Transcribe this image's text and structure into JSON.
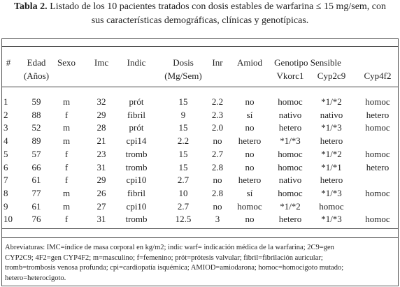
{
  "caption": {
    "label": "Tabla 2.",
    "lines": [
      "Listado de los 10 pacientes tratados con dosis estables de warfarina ≤ 15 mg/sem, con",
      "sus características demográficas, clínicas y genotípicas."
    ]
  },
  "table": {
    "headers": [
      [
        "#"
      ],
      [
        "Edad",
        "(Años)"
      ],
      [
        "Sexo"
      ],
      [
        "Imc"
      ],
      [
        "Indic"
      ],
      [
        "Dosis",
        "(Mg/Sem)"
      ],
      [
        "Inr"
      ],
      [
        "Amiod"
      ]
    ],
    "group_header": "Genotipo Sensible",
    "subheaders": [
      "Vkorc1",
      "Cyp2c9",
      "Cyp4f2"
    ],
    "rows": [
      [
        "1",
        "59",
        "m",
        "32",
        "prót",
        "15",
        "2.2",
        "no",
        "homoc",
        "*1/*2",
        "homoc"
      ],
      [
        "2",
        "88",
        "f",
        "29",
        "fibril",
        "9",
        "2.3",
        "sí",
        "nativo",
        "nativo",
        "hetero"
      ],
      [
        "3",
        "52",
        "m",
        "28",
        "prót",
        "15",
        "2.0",
        "no",
        "hetero",
        "*1/*3",
        "homoc"
      ],
      [
        "4",
        "89",
        "m",
        "21",
        "cpi14",
        "2.2",
        "no",
        "hetero",
        "*1/*3",
        "hetero"
      ],
      [
        "5",
        "57",
        "f",
        "23",
        "tromb",
        "15",
        "2.7",
        "no",
        "homoc",
        "*1/*2",
        "homoc"
      ],
      [
        "6",
        "66",
        "f",
        "31",
        "tromb",
        "15",
        "2.8",
        "no",
        "homoc",
        "*1/*1",
        "hetero"
      ],
      [
        "7",
        "61",
        "f",
        "29",
        "cpi10",
        "2.7",
        "no",
        "hetero",
        "nativo",
        "hetero"
      ],
      [
        "8",
        "77",
        "m",
        "26",
        "fibril",
        "10",
        "2.8",
        "sí",
        "homoc",
        "*1/*3",
        "homoc"
      ],
      [
        "9",
        "61",
        "m",
        "27",
        "cpi10",
        "2.7",
        "no",
        "homoc",
        "*1/*2",
        "homoc"
      ],
      [
        "10",
        "76",
        "f",
        "31",
        "tromb",
        "12.5",
        "3",
        "no",
        "hetero",
        "*1/*3",
        "homoc"
      ]
    ]
  },
  "footnote": [
    "Abreviaturas: IMC=índice de masa corporal en kg/m2; indic warf= indicación médica de la warfarina; 2C9=gen",
    "CYP2C9; 4F2=gen CYP4F2; m=masculino; f=femenino; prót=prótesis valvular; fibril=fibrilación auricular;",
    "tromb=trombosis venosa profunda; cpi=cardiopatía isquémica; AMIOD=amiodarona; homoc=homocigoto mutado;",
    "hetero=heterocigoto."
  ]
}
